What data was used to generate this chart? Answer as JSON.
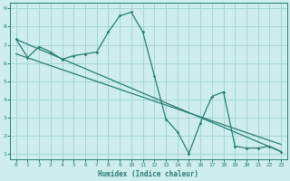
{
  "xlabel": "Humidex (Indice chaleur)",
  "xlim": [
    -0.5,
    23.5
  ],
  "ylim": [
    0.7,
    9.3
  ],
  "xticks": [
    0,
    1,
    2,
    3,
    4,
    5,
    6,
    7,
    8,
    9,
    10,
    11,
    12,
    13,
    14,
    15,
    16,
    17,
    18,
    19,
    20,
    21,
    22,
    23
  ],
  "yticks": [
    1,
    2,
    3,
    4,
    5,
    6,
    7,
    8,
    9
  ],
  "bg_color": "#cdeeed",
  "grid_color": "#a5d5d2",
  "line_color": "#2a7a72",
  "main_x": [
    0,
    1,
    2,
    3,
    4,
    5,
    6,
    7,
    8,
    9,
    10,
    11,
    12,
    13,
    14,
    15,
    16,
    17,
    18,
    19,
    20,
    21,
    22,
    23
  ],
  "main_y": [
    7.3,
    6.3,
    6.9,
    6.6,
    6.2,
    6.4,
    6.5,
    6.6,
    7.7,
    8.6,
    8.8,
    7.7,
    5.3,
    2.9,
    2.2,
    1.0,
    2.7,
    4.15,
    4.4,
    1.4,
    1.3,
    1.3,
    1.4,
    1.1
  ],
  "line2_x": [
    0,
    23
  ],
  "line2_y": [
    7.3,
    1.1
  ],
  "line3_x": [
    0,
    23
  ],
  "line3_y": [
    6.5,
    1.5
  ]
}
